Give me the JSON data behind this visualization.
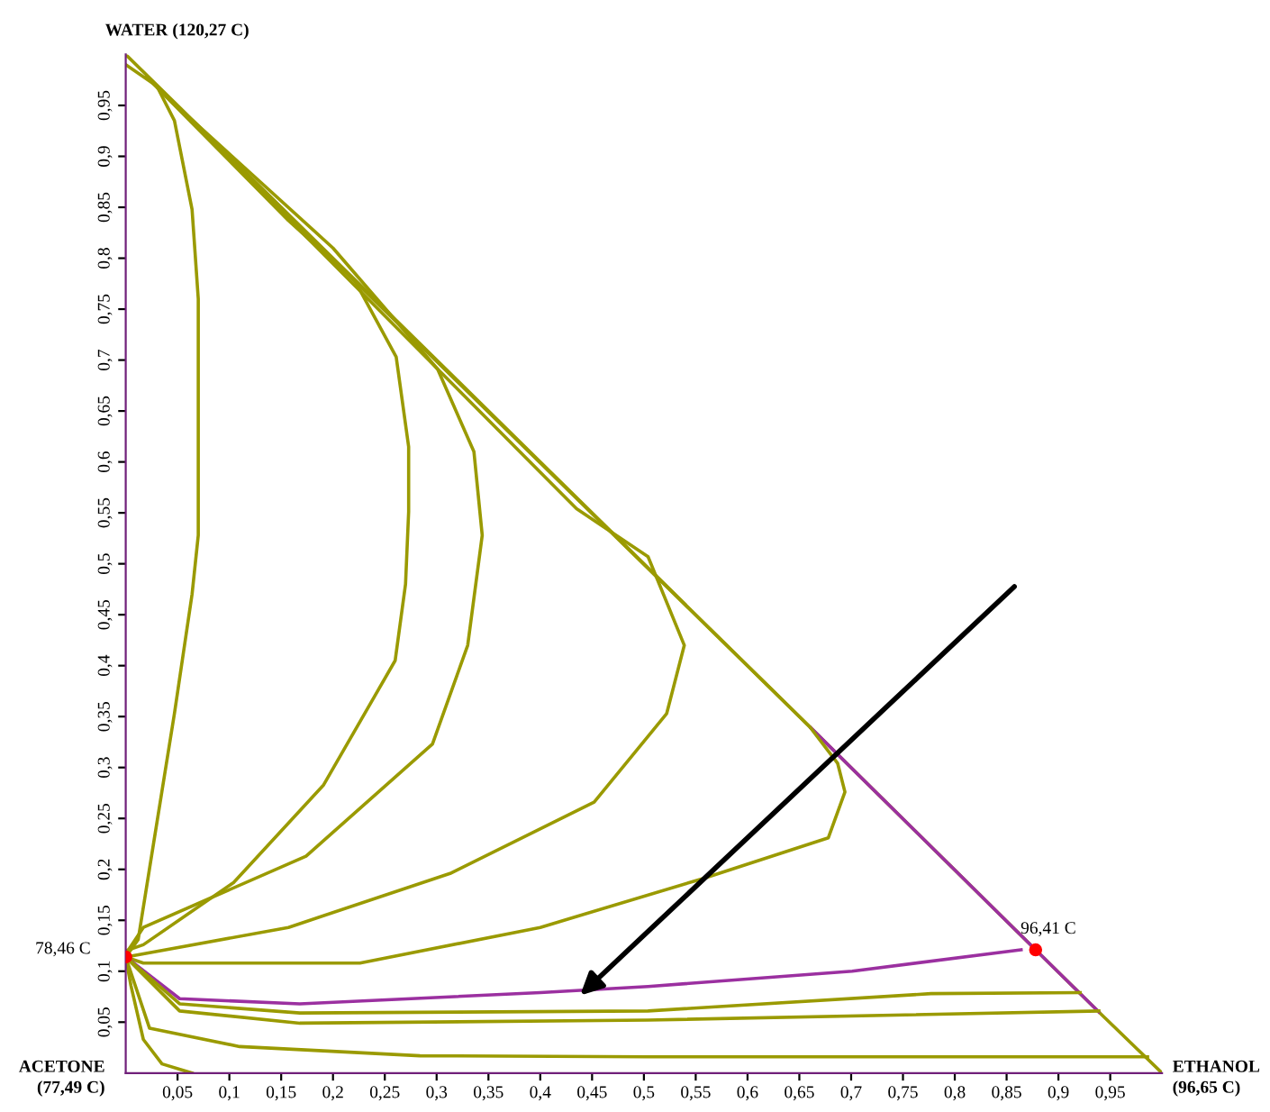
{
  "chart_data": {
    "type": "line",
    "xlim": [
      0,
      1
    ],
    "ylim": [
      0,
      1
    ],
    "xticks": [
      {
        "value": 0.05,
        "label": "0,05"
      },
      {
        "value": 0.1,
        "label": "0,1"
      },
      {
        "value": 0.15,
        "label": "0,15"
      },
      {
        "value": 0.2,
        "label": "0,2"
      },
      {
        "value": 0.25,
        "label": "0,25"
      },
      {
        "value": 0.3,
        "label": "0,3"
      },
      {
        "value": 0.35,
        "label": "0,35"
      },
      {
        "value": 0.4,
        "label": "0,4"
      },
      {
        "value": 0.45,
        "label": "0,45"
      },
      {
        "value": 0.5,
        "label": "0,5"
      },
      {
        "value": 0.55,
        "label": "0,55"
      },
      {
        "value": 0.6,
        "label": "0,6"
      },
      {
        "value": 0.65,
        "label": "0,65"
      },
      {
        "value": 0.7,
        "label": "0,7"
      },
      {
        "value": 0.75,
        "label": "0,75"
      },
      {
        "value": 0.8,
        "label": "0,8"
      },
      {
        "value": 0.85,
        "label": "0,85"
      },
      {
        "value": 0.9,
        "label": "0,9"
      },
      {
        "value": 0.95,
        "label": "0,95"
      }
    ],
    "yticks": [
      {
        "value": 0.05,
        "label": "0,05"
      },
      {
        "value": 0.1,
        "label": "0,1"
      },
      {
        "value": 0.15,
        "label": "0,15"
      },
      {
        "value": 0.2,
        "label": "0,2"
      },
      {
        "value": 0.25,
        "label": "0,25"
      },
      {
        "value": 0.3,
        "label": "0,3"
      },
      {
        "value": 0.35,
        "label": "0,35"
      },
      {
        "value": 0.4,
        "label": "0,4"
      },
      {
        "value": 0.45,
        "label": "0,45"
      },
      {
        "value": 0.5,
        "label": "0,5"
      },
      {
        "value": 0.55,
        "label": "0,55"
      },
      {
        "value": 0.6,
        "label": "0,6"
      },
      {
        "value": 0.65,
        "label": "0,65"
      },
      {
        "value": 0.7,
        "label": "0,7"
      },
      {
        "value": 0.75,
        "label": "0,75"
      },
      {
        "value": 0.8,
        "label": "0,8"
      },
      {
        "value": 0.85,
        "label": "0,85"
      },
      {
        "value": 0.9,
        "label": "0,9"
      },
      {
        "value": 0.95,
        "label": "0,95"
      }
    ],
    "grid": false,
    "legend": false,
    "marker": "none",
    "line_style": "solid",
    "series": [
      {
        "color": "#9a9a00",
        "x": [
          0,
          0.66,
          0.878,
          0.939,
          1
        ],
        "values": [
          1,
          0.34,
          0.121,
          0.06,
          0
        ]
      },
      {
        "color": "#9b30a0",
        "x": [
          0.661,
          0.878,
          0.939
        ],
        "values": [
          0.339,
          0.121,
          0.06
        ]
      },
      {
        "color": "#9a9a00",
        "x": [
          0,
          0.012,
          0.023,
          0.047,
          0.064,
          0.07,
          0.07,
          0.064,
          0.047,
          0.03,
          0
        ],
        "values": [
          0.114,
          0.131,
          0.201,
          0.353,
          0.47,
          0.528,
          0.76,
          0.848,
          0.935,
          0.969,
          0.99
        ]
      },
      {
        "color": "#9a9a00",
        "x": [
          0,
          0.017,
          0.104,
          0.191,
          0.26,
          0.27,
          0.273,
          0.273,
          0.261,
          0.221,
          0.157,
          0.02
        ],
        "values": [
          0.12,
          0.126,
          0.187,
          0.283,
          0.405,
          0.48,
          0.551,
          0.615,
          0.703,
          0.778,
          0.837,
          0.978
        ]
      },
      {
        "color": "#9a9a00",
        "x": [
          0,
          0.017,
          0.174,
          0.296,
          0.33,
          0.344,
          0.336,
          0.301,
          0.2,
          0.04
        ],
        "values": [
          0.117,
          0.143,
          0.213,
          0.323,
          0.42,
          0.528,
          0.61,
          0.691,
          0.81,
          0.958
        ]
      },
      {
        "color": "#9a9a00",
        "x": [
          0,
          0.017,
          0.157,
          0.313,
          0.452,
          0.522,
          0.539,
          0.504,
          0.435,
          0.06
        ],
        "values": [
          0.114,
          0.117,
          0.143,
          0.196,
          0.266,
          0.353,
          0.42,
          0.507,
          0.554,
          0.938
        ]
      },
      {
        "color": "#9a9a00",
        "x": [
          0,
          0.017,
          0.226,
          0.4,
          0.557,
          0.678,
          0.694,
          0.687,
          0.66,
          0.08
        ],
        "values": [
          0.114,
          0.108,
          0.108,
          0.143,
          0.191,
          0.231,
          0.276,
          0.304,
          0.34,
          0.918
        ]
      },
      {
        "color": "#9b30a0",
        "x": [
          0,
          0.052,
          0.168,
          0.4,
          0.504,
          0.701,
          0.864
        ],
        "values": [
          0.114,
          0.073,
          0.068,
          0.079,
          0.085,
          0.1,
          0.121
        ]
      },
      {
        "color": "#9a9a00",
        "x": [
          0,
          0.052,
          0.168,
          0.504,
          0.777,
          0.921
        ],
        "values": [
          0.114,
          0.068,
          0.059,
          0.061,
          0.078,
          0.079
        ]
      },
      {
        "color": "#9a9a00",
        "x": [
          0,
          0.052,
          0.168,
          0.504,
          0.939
        ],
        "values": [
          0.114,
          0.061,
          0.049,
          0.052,
          0.061
        ]
      },
      {
        "color": "#9a9a00",
        "x": [
          0,
          0.023,
          0.11,
          0.284,
          0.504,
          0.986
        ],
        "values": [
          0.114,
          0.044,
          0.026,
          0.017,
          0.016,
          0.016
        ]
      },
      {
        "color": "#9a9a00",
        "x": [
          0,
          0.005,
          0.017,
          0.035,
          0.064
        ],
        "values": [
          0.114,
          0.086,
          0.033,
          0.009,
          0
        ]
      },
      {
        "type": "scatter",
        "marker": "circle",
        "colors": [
          "#ff0000",
          "#ff0000"
        ],
        "x": [
          0,
          0.878
        ],
        "values": [
          0.114,
          0.121
        ]
      }
    ],
    "annotations": [
      "WATER (120,27 C)",
      "ACETONE\n(77,49 C)",
      "ETHANOL\n(96,65 C)",
      {
        "text": "78,46 C",
        "x": 0,
        "y": 0.114
      },
      {
        "text": "96,41 C",
        "x": 0.878,
        "y": 0.121
      }
    ]
  }
}
